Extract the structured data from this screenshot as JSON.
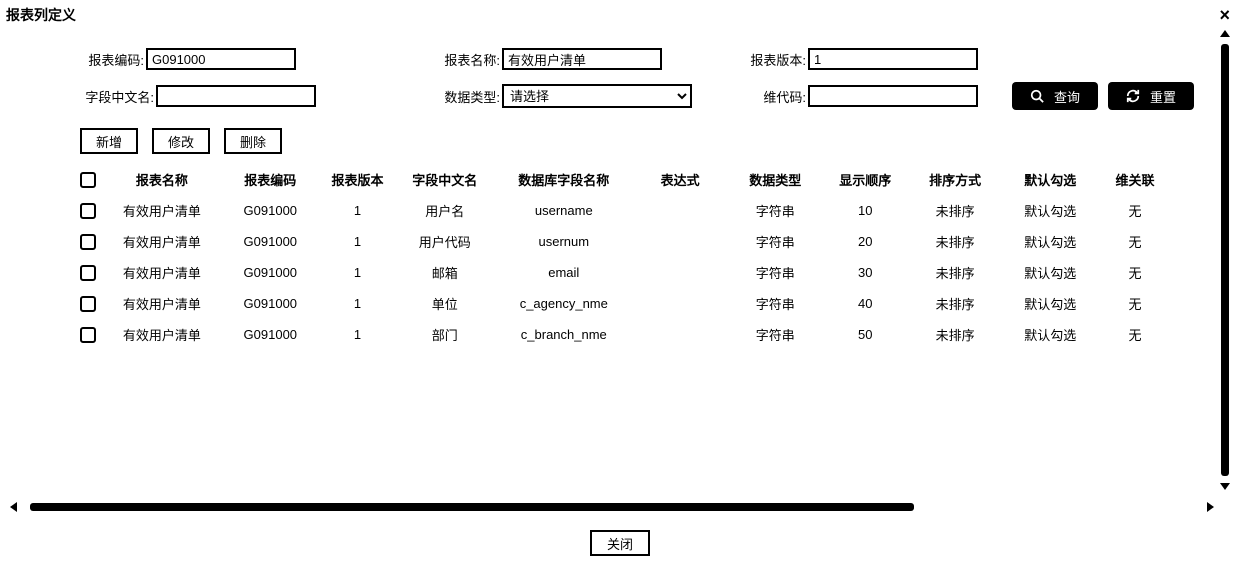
{
  "dialog": {
    "title": "报表列定义",
    "close_symbol": "×"
  },
  "form": {
    "row1": {
      "report_code": {
        "label": "报表编码:",
        "value": "G091000"
      },
      "report_name": {
        "label": "报表名称:",
        "value": "有效用户清单"
      },
      "report_version": {
        "label": "报表版本:",
        "value": "1"
      }
    },
    "row2": {
      "field_cn_name": {
        "label": "字段中文名:",
        "value": ""
      },
      "data_type": {
        "label": "数据类型:",
        "selected": "请选择"
      },
      "dimension_code": {
        "label": "维代码:",
        "value": ""
      }
    }
  },
  "buttons": {
    "search": "查询",
    "reset": "重置",
    "add": "新增",
    "edit": "修改",
    "delete": "删除",
    "close": "关闭"
  },
  "colors": {
    "button_bg": "#000000",
    "button_fg": "#ffffff",
    "border": "#000000",
    "page_bg": "#ffffff",
    "text": "#000000"
  },
  "table": {
    "columns": [
      "",
      "报表名称",
      "报表编码",
      "报表版本",
      "字段中文名",
      "数据库字段名称",
      "表达式",
      "数据类型",
      "显示顺序",
      "排序方式",
      "默认勾选",
      "维关联"
    ],
    "rows": [
      {
        "report_name": "有效用户清单",
        "report_code": "G091000",
        "report_version": "1",
        "field_cn": "用户名",
        "db_field": "username",
        "expr": "",
        "data_type": "字符串",
        "order": "10",
        "sort": "未排序",
        "default_checked": "默认勾选",
        "dim": "无"
      },
      {
        "report_name": "有效用户清单",
        "report_code": "G091000",
        "report_version": "1",
        "field_cn": "用户代码",
        "db_field": "usernum",
        "expr": "",
        "data_type": "字符串",
        "order": "20",
        "sort": "未排序",
        "default_checked": "默认勾选",
        "dim": "无"
      },
      {
        "report_name": "有效用户清单",
        "report_code": "G091000",
        "report_version": "1",
        "field_cn": "邮箱",
        "db_field": "email",
        "expr": "",
        "data_type": "字符串",
        "order": "30",
        "sort": "未排序",
        "default_checked": "默认勾选",
        "dim": "无"
      },
      {
        "report_name": "有效用户清单",
        "report_code": "G091000",
        "report_version": "1",
        "field_cn": "单位",
        "db_field": "c_agency_nme",
        "expr": "",
        "data_type": "字符串",
        "order": "40",
        "sort": "未排序",
        "default_checked": "默认勾选",
        "dim": "无"
      },
      {
        "report_name": "有效用户清单",
        "report_code": "G091000",
        "report_version": "1",
        "field_cn": "部门",
        "db_field": "c_branch_nme",
        "expr": "",
        "data_type": "字符串",
        "order": "50",
        "sort": "未排序",
        "default_checked": "默认勾选",
        "dim": "无"
      }
    ]
  },
  "layout": {
    "input_widths": {
      "code": 150,
      "name": 160,
      "version": 170,
      "field_cn": 160,
      "select": 190,
      "dim_code": 170
    },
    "label_widths": {
      "l1": 66,
      "l2": 66,
      "l3": 66
    },
    "gaps": {
      "row1_g1": 140,
      "row1_g2": 80,
      "row2_g1": 140,
      "row2_g2": 90,
      "btn_gap": 40
    }
  }
}
